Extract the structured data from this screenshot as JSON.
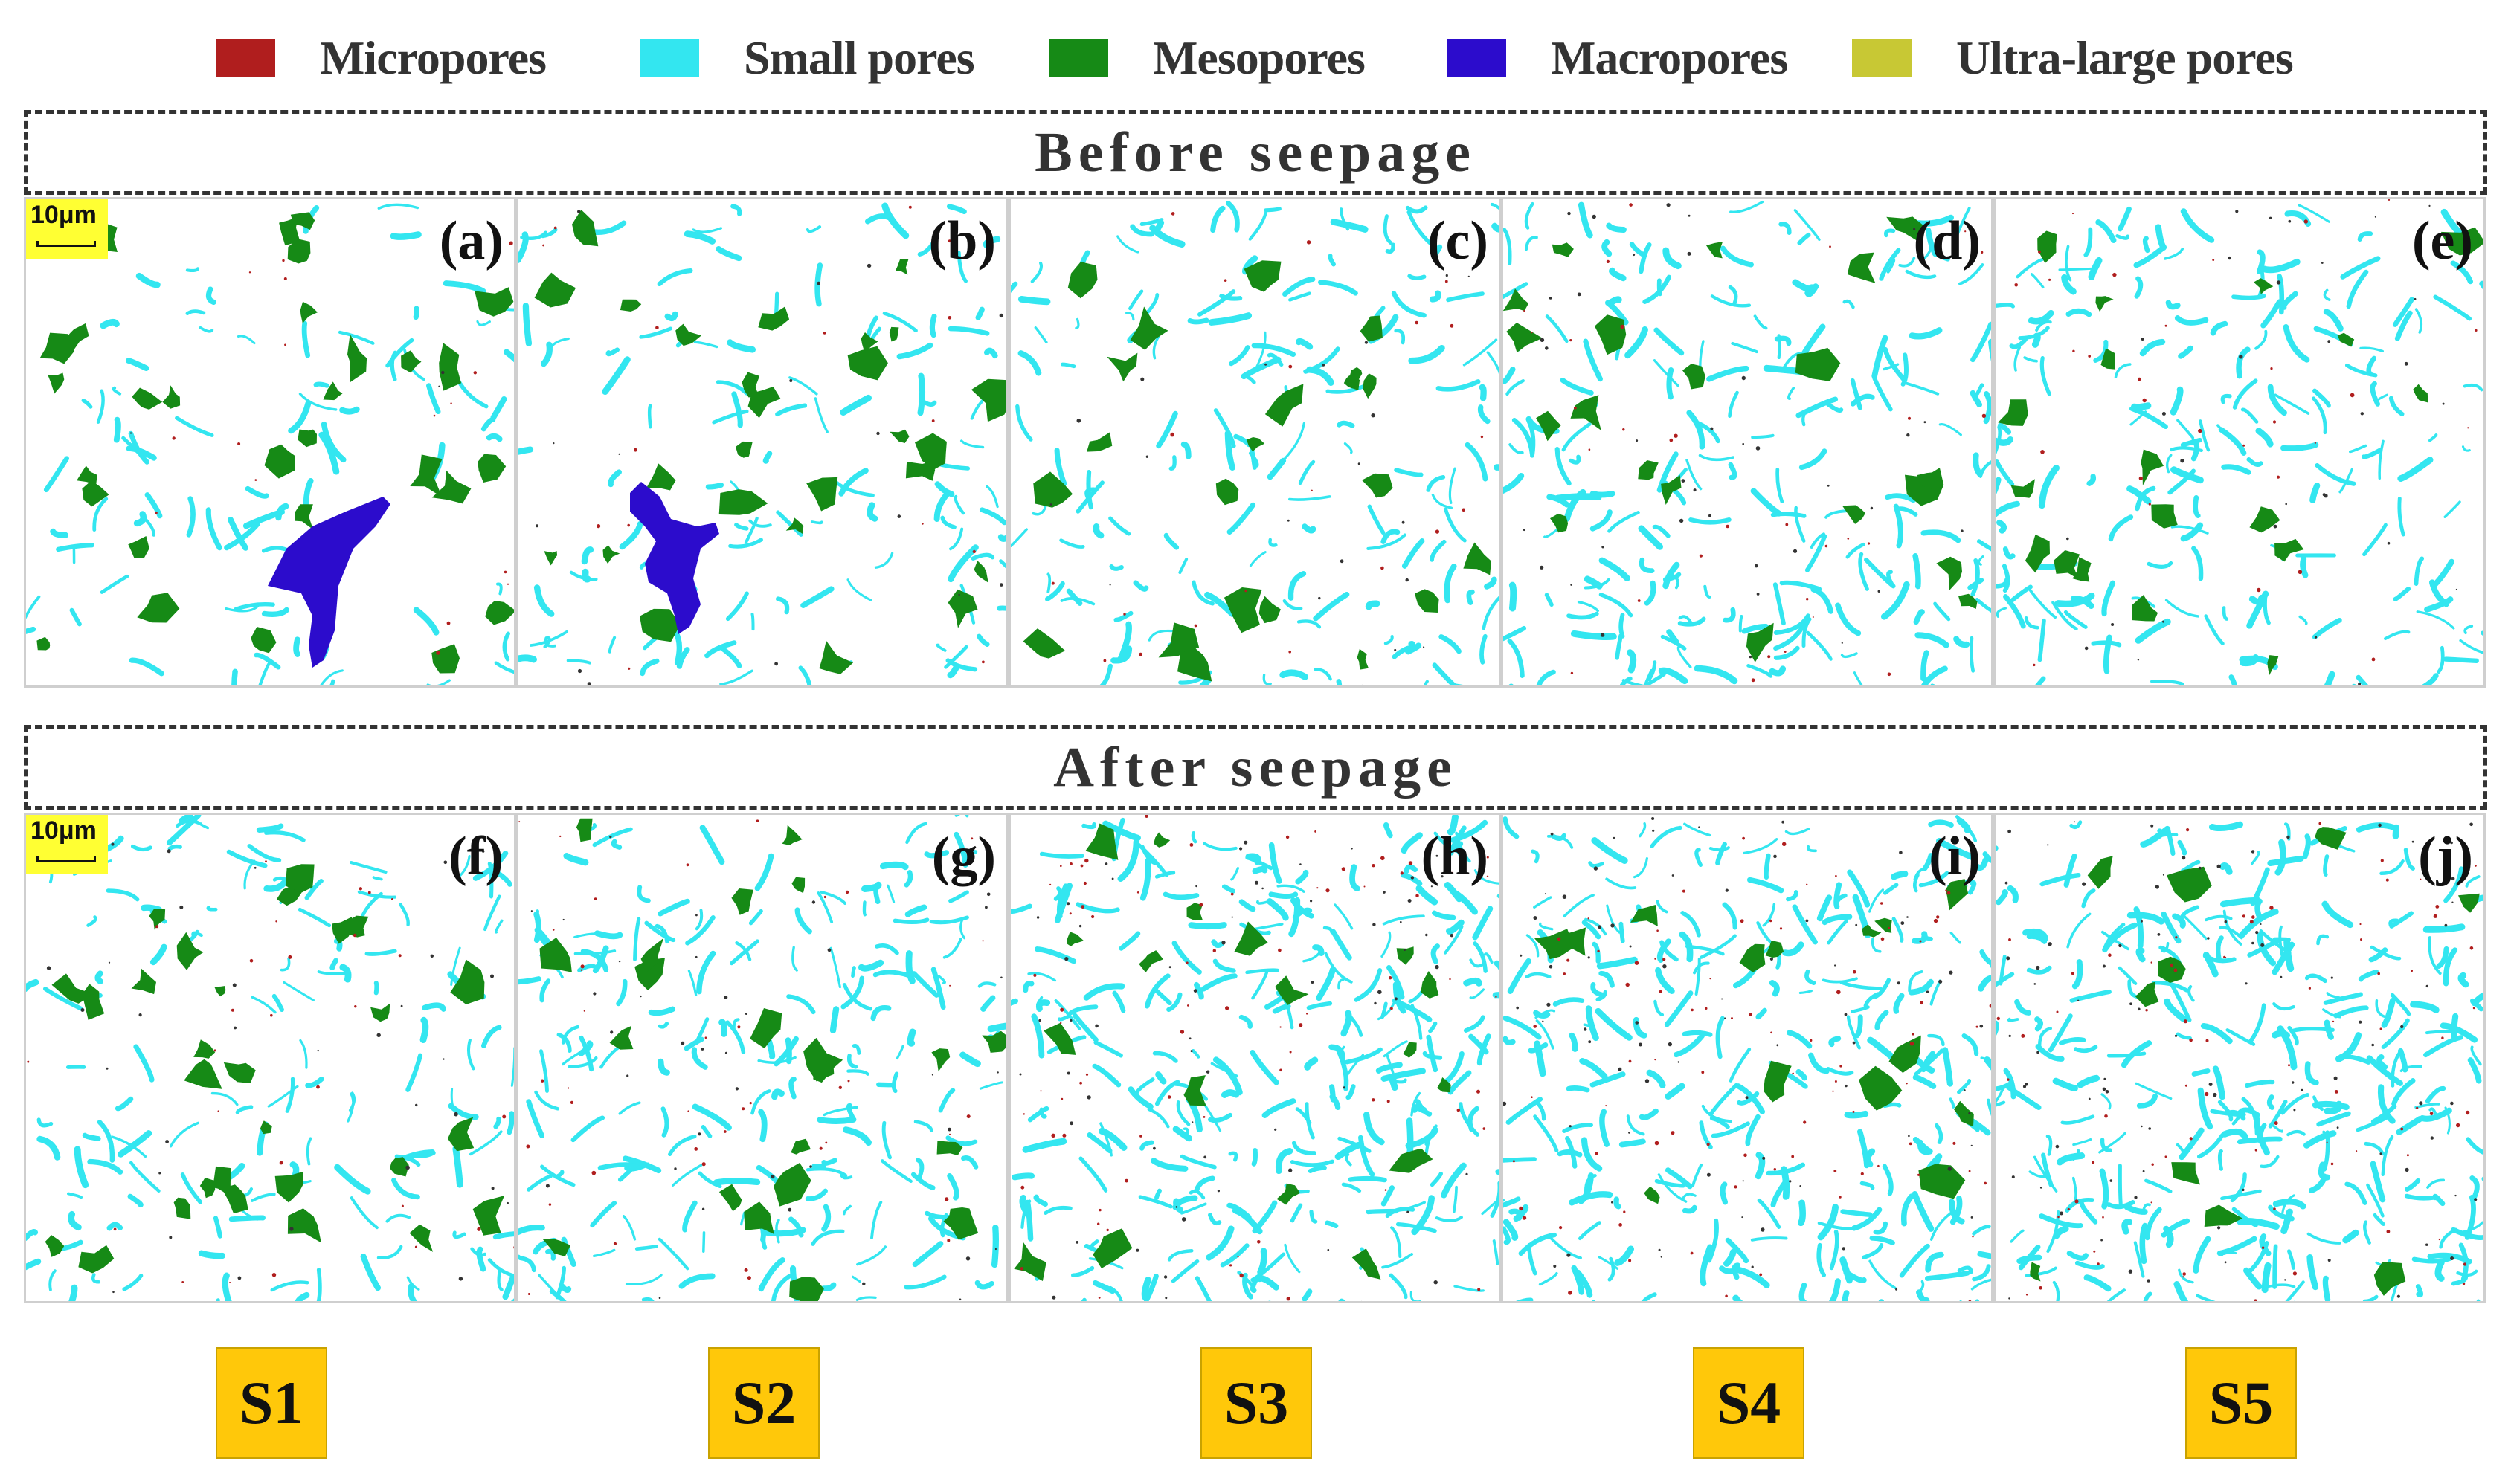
{
  "legend": [
    {
      "label": "Micropores",
      "color": "#b01e1e"
    },
    {
      "label": "Small pores",
      "color": "#33e6f0"
    },
    {
      "label": "Mesopores",
      "color": "#168a16"
    },
    {
      "label": "Macropores",
      "color": "#2c0ccc"
    },
    {
      "label": "Ultra-large pores",
      "color": "#c8c834"
    }
  ],
  "rows": {
    "before": {
      "title": "Before seepage",
      "panels": [
        {
          "label": "(a)",
          "scale": "10μm",
          "macropore": true
        },
        {
          "label": "(b)",
          "macropore": true
        },
        {
          "label": "(c)"
        },
        {
          "label": "(d)"
        },
        {
          "label": "(e)"
        }
      ]
    },
    "after": {
      "title": "After seepage",
      "panels": [
        {
          "label": "(f)",
          "scale": "10μm"
        },
        {
          "label": "(g)"
        },
        {
          "label": "(h)"
        },
        {
          "label": "(i)"
        },
        {
          "label": "(j)"
        }
      ]
    }
  },
  "samples": [
    "S1",
    "S2",
    "S3",
    "S4",
    "S5"
  ]
}
